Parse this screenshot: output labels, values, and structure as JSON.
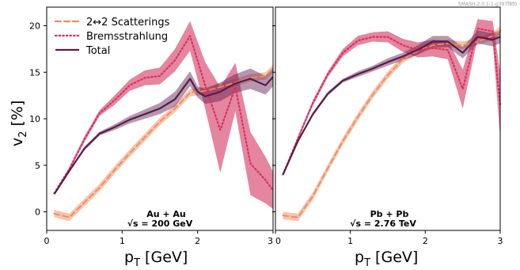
{
  "watermark": "SMASH-2.0.1-1-g397f8f0",
  "chart_data": [
    {
      "type": "line",
      "panel": "left",
      "xlabel": "p_T [GeV]",
      "ylabel": "v_2 [%]",
      "xlim": [
        0,
        3
      ],
      "ylim": [
        -2,
        22
      ],
      "xticks": [
        "0",
        "1",
        "2",
        "3"
      ],
      "yticks": [
        "0",
        "5",
        "10",
        "15",
        "20"
      ],
      "annotation": [
        "Au + Au",
        "√s = 200 GeV"
      ],
      "legend_position": "top-left",
      "series": [
        {
          "name": "2↔2 Scatterings",
          "style": "dashed",
          "color": "#f08a5d",
          "x": [
            0.1,
            0.3,
            0.5,
            0.7,
            0.9,
            1.1,
            1.3,
            1.5,
            1.7,
            1.9,
            2.1,
            2.3,
            2.5,
            2.7,
            2.9,
            3.0
          ],
          "y": [
            -0.2,
            -0.6,
            1.0,
            2.6,
            4.5,
            6.3,
            8.0,
            9.7,
            11.1,
            12.8,
            13.0,
            13.4,
            13.9,
            14.4,
            14.6,
            15.4
          ],
          "band": 0.4
        },
        {
          "name": "Bremsstrahlung",
          "style": "dotted",
          "color": "#d4335f",
          "x": [
            0.1,
            0.3,
            0.5,
            0.7,
            0.9,
            1.1,
            1.3,
            1.5,
            1.7,
            1.9,
            2.1,
            2.3,
            2.5,
            2.7,
            2.9,
            3.0
          ],
          "y": [
            2.0,
            4.6,
            7.8,
            10.6,
            12.0,
            13.6,
            14.4,
            14.6,
            16.3,
            18.9,
            13.6,
            8.8,
            13.4,
            5.2,
            3.4,
            2.3
          ],
          "err": [
            0,
            0.2,
            0.3,
            0.3,
            0.5,
            0.6,
            0.8,
            0.9,
            1.2,
            1.6,
            2.5,
            4.6,
            2.6,
            3.4,
            2.5,
            2.0
          ]
        },
        {
          "name": "Total",
          "style": "solid",
          "color": "#5b1a4c",
          "x": [
            0.1,
            0.3,
            0.5,
            0.7,
            0.9,
            1.1,
            1.3,
            1.5,
            1.7,
            1.9,
            2.0,
            2.1,
            2.3,
            2.5,
            2.7,
            2.9,
            3.0
          ],
          "y": [
            1.9,
            4.4,
            6.8,
            8.4,
            9.1,
            9.9,
            10.5,
            11.1,
            12.1,
            14.3,
            12.9,
            12.4,
            12.9,
            13.8,
            14.3,
            13.6,
            14.5
          ],
          "err": [
            0,
            0.1,
            0.2,
            0.2,
            0.3,
            0.4,
            0.5,
            0.6,
            0.8,
            0.8,
            0.6,
            0.8,
            1.0,
            1.0,
            1.1,
            1.0,
            1.0
          ]
        }
      ]
    },
    {
      "type": "line",
      "panel": "right",
      "xlabel": "p_T [GeV]",
      "xlim": [
        0,
        3
      ],
      "ylim": [
        -2,
        22
      ],
      "xticks": [
        "0",
        "1",
        "2",
        "3"
      ],
      "annotation": [
        "Pb + Pb",
        "√s = 2.76 TeV"
      ],
      "series": [
        {
          "name": "2↔2 Scatterings",
          "style": "dashed",
          "color": "#f08a5d",
          "x": [
            0.1,
            0.3,
            0.5,
            0.7,
            0.9,
            1.1,
            1.3,
            1.5,
            1.7,
            1.9,
            2.1,
            2.3,
            2.5,
            2.7,
            2.9,
            3.0
          ],
          "y": [
            -0.4,
            -0.6,
            1.7,
            4.7,
            7.6,
            10.2,
            12.6,
            14.7,
            16.4,
            17.3,
            17.9,
            18.1,
            17.9,
            18.3,
            18.9,
            19.5
          ],
          "band": 0.4
        },
        {
          "name": "Bremsstrahlung",
          "style": "dotted",
          "color": "#d4335f",
          "x": [
            0.1,
            0.3,
            0.5,
            0.7,
            0.9,
            1.1,
            1.3,
            1.5,
            1.7,
            1.9,
            2.1,
            2.3,
            2.5,
            2.7,
            2.9,
            3.0
          ],
          "y": [
            4.0,
            7.9,
            11.7,
            14.8,
            17.1,
            18.4,
            18.8,
            18.8,
            17.9,
            17.4,
            17.6,
            17.4,
            13.2,
            19.7,
            19.4,
            11.4
          ],
          "err": [
            0,
            0.2,
            0.3,
            0.3,
            0.4,
            0.5,
            0.5,
            0.6,
            0.7,
            0.8,
            0.9,
            1.0,
            2.1,
            1.0,
            1.1,
            3.5
          ]
        },
        {
          "name": "Total",
          "style": "solid",
          "color": "#5b1a4c",
          "x": [
            0.1,
            0.3,
            0.5,
            0.7,
            0.9,
            1.1,
            1.3,
            1.5,
            1.7,
            1.9,
            2.1,
            2.3,
            2.5,
            2.7,
            2.9,
            3.0
          ],
          "y": [
            4.0,
            7.6,
            10.5,
            12.7,
            14.1,
            14.8,
            15.4,
            16.1,
            16.7,
            17.4,
            18.3,
            18.3,
            17.1,
            18.8,
            18.5,
            18.8
          ],
          "err": [
            0,
            0.1,
            0.2,
            0.2,
            0.2,
            0.3,
            0.3,
            0.4,
            0.4,
            0.5,
            0.6,
            0.6,
            0.6,
            0.7,
            0.7,
            0.7
          ]
        }
      ]
    }
  ],
  "legend": [
    {
      "label": "2↔2 Scatterings",
      "style": "dashed",
      "color": "#f08a5d"
    },
    {
      "label": "Bremsstrahlung",
      "style": "dotted",
      "color": "#d4335f"
    },
    {
      "label": "Total",
      "style": "solid",
      "color": "#5b1a4c"
    }
  ]
}
